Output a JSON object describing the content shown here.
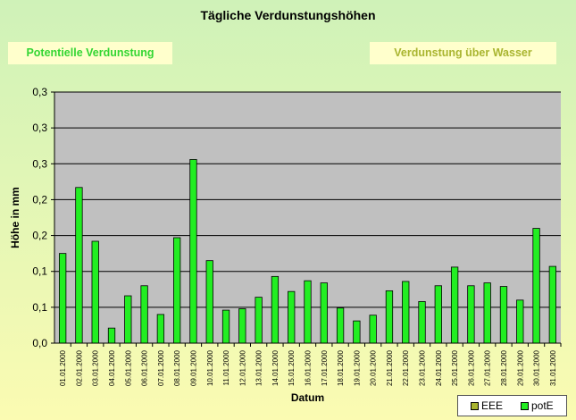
{
  "header": {
    "title": "Tägliche Verdunstungshöhen",
    "btn_potentielle": "Potentielle Verdunstung",
    "btn_wasser": "Verdunstung über Wasser"
  },
  "colors": {
    "bar": "#22ee22",
    "plot_bg": "#c0c0c0",
    "legend_eee": "#a9b530",
    "legend_pote": "#22ee22"
  },
  "legend": {
    "items": [
      {
        "label": "EEE",
        "color": "#a9b530"
      },
      {
        "label": "potE",
        "color": "#22ee22"
      }
    ]
  },
  "chart_data": {
    "type": "bar",
    "title": "Tägliche Verdunstungshöhen",
    "xlabel": "Datum",
    "ylabel": "Höhe in mm",
    "ylim": [
      0,
      0.35
    ],
    "ytick_values": [
      0,
      0.05,
      0.1,
      0.15,
      0.2,
      0.25,
      0.3,
      0.35
    ],
    "ytick_labels": [
      "0,0",
      "0,1",
      "0,1",
      "0,2",
      "0,2",
      "0,3",
      "0,3",
      "0,3"
    ],
    "grid": true,
    "legend_position": "bottom-right",
    "categories": [
      "01.01.2000",
      "02.01.2000",
      "03.01.2000",
      "04.01.2000",
      "05.01.2000",
      "06.01.2000",
      "07.01.2000",
      "08.01.2000",
      "09.01.2000",
      "10.01.2000",
      "11.01.2000",
      "12.01.2000",
      "13.01.2000",
      "14.01.2000",
      "15.01.2000",
      "16.01.2000",
      "17.01.2000",
      "18.01.2000",
      "19.01.2000",
      "20.01.2000",
      "21.01.2000",
      "22.01.2000",
      "23.01.2000",
      "24.01.2000",
      "25.01.2000",
      "26.01.2000",
      "27.01.2000",
      "28.01.2000",
      "29.01.2000",
      "30.01.2000",
      "31.01.2000"
    ],
    "series": [
      {
        "name": "potE",
        "values": [
          0.125,
          0.217,
          0.142,
          0.021,
          0.066,
          0.08,
          0.04,
          0.147,
          0.256,
          0.115,
          0.046,
          0.048,
          0.064,
          0.093,
          0.072,
          0.087,
          0.084,
          0.049,
          0.031,
          0.039,
          0.073,
          0.086,
          0.058,
          0.08,
          0.106,
          0.08,
          0.084,
          0.079,
          0.06,
          0.16,
          0.107
        ]
      }
    ]
  }
}
